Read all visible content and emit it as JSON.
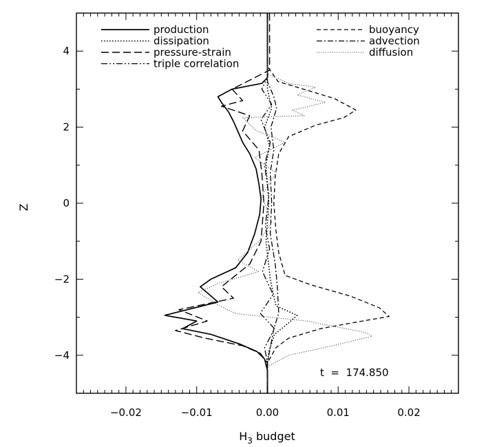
{
  "chart_data": {
    "type": "line",
    "xlabel": "H",
    "xlabel_subscript": "3",
    "xlabel_suffix": " budget",
    "ylabel": "Z",
    "xlim": [
      -0.027,
      0.027
    ],
    "ylim": [
      -5,
      5
    ],
    "x_ticks": [
      -0.02,
      -0.01,
      0.0,
      0.01,
      0.02
    ],
    "x_tick_labels": [
      "−0.02",
      "−0.01",
      "0.00",
      "0.01",
      "0.02"
    ],
    "y_ticks": [
      -4,
      -2,
      0,
      2,
      4
    ],
    "y_tick_labels": [
      "−4",
      "−2",
      "0",
      "2",
      "4"
    ],
    "grid": false,
    "legend_position": "top",
    "annotation": "t  =  174.850",
    "series": [
      {
        "name": "production",
        "dash": "solid",
        "points": [
          [
            0.0,
            5.0
          ],
          [
            0.0,
            4.0
          ],
          [
            0.0,
            3.3
          ],
          [
            -0.0008,
            3.15
          ],
          [
            -0.005,
            3.0
          ],
          [
            -0.007,
            2.8
          ],
          [
            -0.0065,
            2.65
          ],
          [
            -0.0055,
            2.4
          ],
          [
            -0.0048,
            2.15
          ],
          [
            -0.0042,
            1.9
          ],
          [
            -0.0035,
            1.6
          ],
          [
            -0.0025,
            1.3
          ],
          [
            -0.0016,
            0.9
          ],
          [
            -0.0012,
            0.5
          ],
          [
            -0.0009,
            0.1
          ],
          [
            -0.0011,
            -0.3
          ],
          [
            -0.0018,
            -0.8
          ],
          [
            -0.0028,
            -1.3
          ],
          [
            -0.0045,
            -1.7
          ],
          [
            -0.008,
            -2.0
          ],
          [
            -0.0095,
            -2.2
          ],
          [
            -0.007,
            -2.6
          ],
          [
            -0.0145,
            -2.95
          ],
          [
            -0.01,
            -3.1
          ],
          [
            -0.012,
            -3.3
          ],
          [
            -0.008,
            -3.45
          ],
          [
            -0.004,
            -3.7
          ],
          [
            -0.0015,
            -3.9
          ],
          [
            -0.0004,
            -4.1
          ],
          [
            0.0,
            -4.4
          ],
          [
            0.0,
            -5.0
          ]
        ]
      },
      {
        "name": "dissipation",
        "dash": "dotted",
        "points": [
          [
            0.0,
            5.0
          ],
          [
            0.0,
            3.0
          ],
          [
            0.0006,
            2.5
          ],
          [
            -0.0004,
            2.0
          ],
          [
            0.0003,
            1.5
          ],
          [
            -0.0002,
            1.0
          ],
          [
            0.0002,
            0.0
          ],
          [
            -0.0002,
            -1.0
          ],
          [
            0.0004,
            -2.0
          ],
          [
            0.0012,
            -2.7
          ],
          [
            0.0042,
            -2.95
          ],
          [
            0.003,
            -3.15
          ],
          [
            0.001,
            -3.45
          ],
          [
            0.0002,
            -3.9
          ],
          [
            0.0,
            -4.2
          ],
          [
            0.0,
            -5.0
          ]
        ]
      },
      {
        "name": "pressure-strain",
        "dash": "longdash",
        "points": [
          [
            0.0003,
            5.0
          ],
          [
            0.0003,
            3.5
          ],
          [
            -0.005,
            3.0
          ],
          [
            -0.0035,
            2.7
          ],
          [
            -0.0065,
            2.55
          ],
          [
            -0.0025,
            2.3
          ],
          [
            -0.0035,
            1.9
          ],
          [
            -0.0012,
            1.4
          ],
          [
            -0.0008,
            0.8
          ],
          [
            -0.0005,
            0.0
          ],
          [
            -0.0009,
            -1.0
          ],
          [
            -0.0025,
            -1.6
          ],
          [
            -0.0065,
            -2.2
          ],
          [
            -0.0048,
            -2.5
          ],
          [
            -0.0125,
            -2.8
          ],
          [
            -0.0085,
            -3.1
          ],
          [
            -0.013,
            -3.35
          ],
          [
            -0.0088,
            -3.55
          ],
          [
            -0.0035,
            -3.75
          ],
          [
            -0.001,
            -3.95
          ],
          [
            0.0,
            -4.2
          ],
          [
            0.0,
            -5.0
          ]
        ]
      },
      {
        "name": "triple correlation",
        "dash": "dashdotdot",
        "points": [
          [
            0.0,
            5.0
          ],
          [
            0.0,
            3.3
          ],
          [
            -0.0008,
            3.0
          ],
          [
            0.0006,
            2.6
          ],
          [
            -0.0009,
            2.2
          ],
          [
            0.0004,
            1.6
          ],
          [
            -0.0004,
            1.0
          ],
          [
            0.0002,
            0.2
          ],
          [
            -0.0003,
            -0.6
          ],
          [
            0.0003,
            -1.2
          ],
          [
            -0.0007,
            -1.8
          ],
          [
            0.0008,
            -2.4
          ],
          [
            -0.001,
            -2.9
          ],
          [
            0.001,
            -3.3
          ],
          [
            -0.0004,
            -3.8
          ],
          [
            0.0,
            -4.2
          ],
          [
            0.0,
            -5.0
          ]
        ]
      },
      {
        "name": "buoyancy",
        "dash": "dashed",
        "points": [
          [
            0.0,
            5.0
          ],
          [
            0.0,
            3.6
          ],
          [
            0.0015,
            3.2
          ],
          [
            0.006,
            2.95
          ],
          [
            0.0095,
            2.75
          ],
          [
            0.0125,
            2.45
          ],
          [
            0.0108,
            2.25
          ],
          [
            0.0068,
            2.05
          ],
          [
            0.003,
            1.75
          ],
          [
            0.0016,
            1.3
          ],
          [
            0.0011,
            0.7
          ],
          [
            0.0009,
            0.0
          ],
          [
            0.0012,
            -0.7
          ],
          [
            0.0016,
            -1.3
          ],
          [
            0.0025,
            -1.9
          ],
          [
            0.0062,
            -2.15
          ],
          [
            0.0118,
            -2.45
          ],
          [
            0.0158,
            -2.75
          ],
          [
            0.0172,
            -2.98
          ],
          [
            0.0128,
            -3.12
          ],
          [
            0.0075,
            -3.3
          ],
          [
            0.003,
            -3.55
          ],
          [
            0.0012,
            -3.8
          ],
          [
            0.0,
            -4.2
          ],
          [
            0.0,
            -5.0
          ]
        ]
      },
      {
        "name": "advection",
        "dash": "dashdot",
        "points": [
          [
            0.0,
            5.0
          ],
          [
            0.0,
            3.2
          ],
          [
            0.0009,
            2.8
          ],
          [
            0.0013,
            2.5
          ],
          [
            0.0005,
            2.0
          ],
          [
            0.0009,
            1.4
          ],
          [
            0.0004,
            0.8
          ],
          [
            0.0006,
            0.0
          ],
          [
            0.0004,
            -0.8
          ],
          [
            0.0011,
            -1.6
          ],
          [
            0.0014,
            -2.2
          ],
          [
            0.0016,
            -2.9
          ],
          [
            0.0009,
            -3.3
          ],
          [
            0.0004,
            -3.8
          ],
          [
            0.0,
            -4.2
          ],
          [
            0.0,
            -5.0
          ]
        ]
      },
      {
        "name": "diffusion",
        "dash": "fine",
        "points": [
          [
            0.0,
            5.0
          ],
          [
            0.0,
            3.4
          ],
          [
            0.003,
            3.15
          ],
          [
            0.0068,
            3.05
          ],
          [
            0.0042,
            2.85
          ],
          [
            0.0082,
            2.65
          ],
          [
            0.0035,
            2.45
          ],
          [
            0.0052,
            2.3
          ],
          [
            -0.0035,
            2.25
          ],
          [
            -0.0015,
            1.9
          ],
          [
            0.0025,
            1.6
          ],
          [
            -0.0018,
            1.2
          ],
          [
            0.0012,
            0.8
          ],
          [
            -0.0008,
            0.2
          ],
          [
            0.0006,
            -0.5
          ],
          [
            -0.0012,
            -1.0
          ],
          [
            -0.0042,
            -1.5
          ],
          [
            -0.0012,
            -1.8
          ],
          [
            -0.0068,
            -2.1
          ],
          [
            -0.0098,
            -2.35
          ],
          [
            -0.0068,
            -2.7
          ],
          [
            -0.0045,
            -2.9
          ],
          [
            0.0055,
            -3.1
          ],
          [
            0.0138,
            -3.4
          ],
          [
            0.0148,
            -3.5
          ],
          [
            0.0092,
            -3.75
          ],
          [
            0.003,
            -4.0
          ],
          [
            0.0,
            -4.3
          ],
          [
            0.0,
            -5.0
          ]
        ]
      }
    ]
  }
}
